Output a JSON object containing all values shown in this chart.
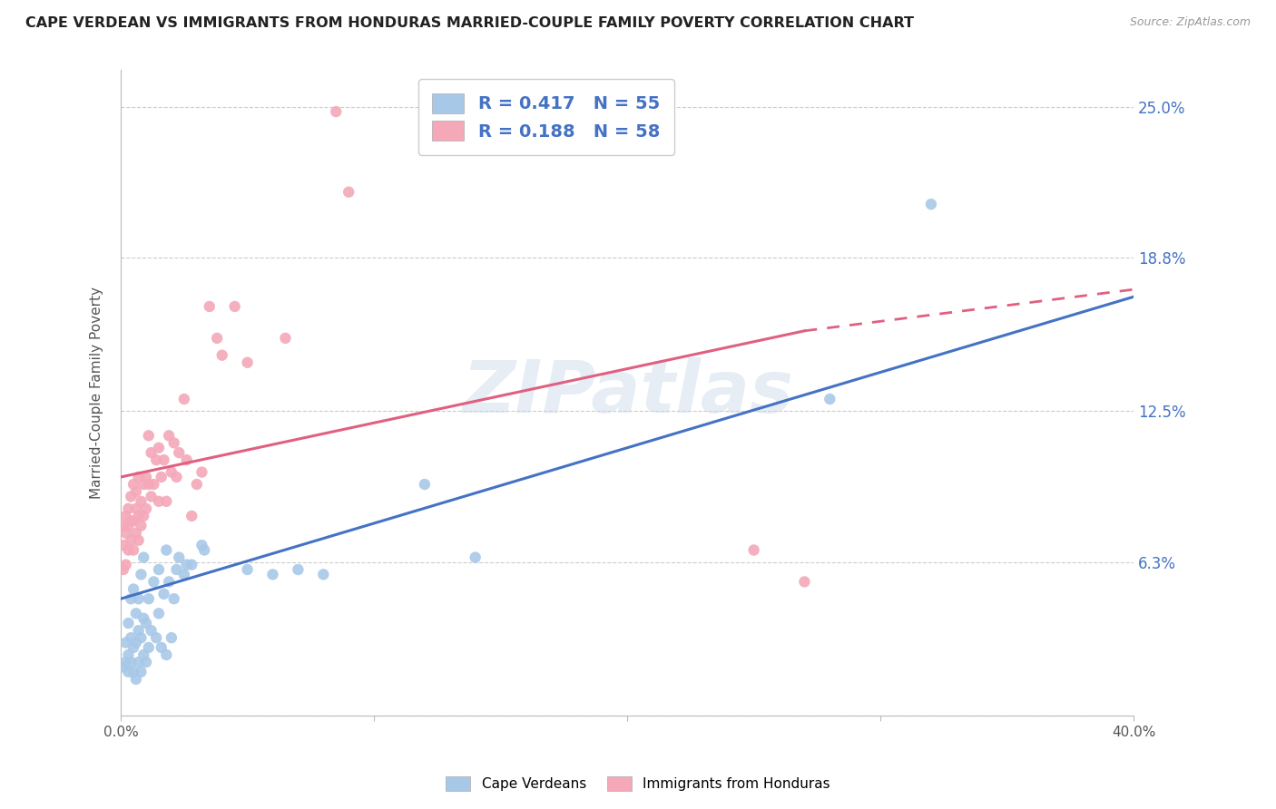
{
  "title": "CAPE VERDEAN VS IMMIGRANTS FROM HONDURAS MARRIED-COUPLE FAMILY POVERTY CORRELATION CHART",
  "source": "Source: ZipAtlas.com",
  "ylabel": "Married-Couple Family Poverty",
  "xlim": [
    0.0,
    0.4
  ],
  "ylim": [
    0.0,
    0.265
  ],
  "yticks": [
    0.0,
    0.063,
    0.125,
    0.188,
    0.25
  ],
  "yticklabels_right": [
    "",
    "6.3%",
    "12.5%",
    "18.8%",
    "25.0%"
  ],
  "blue_R": 0.417,
  "blue_N": 55,
  "pink_R": 0.188,
  "pink_N": 58,
  "watermark": "ZIPatlas",
  "blue_color": "#a8c8e8",
  "pink_color": "#f4a8b8",
  "blue_line_color": "#4472c4",
  "pink_line_color": "#e06080",
  "grid_color": "#cccccc",
  "background_color": "#ffffff",
  "blue_line": [
    [
      0.0,
      0.048
    ],
    [
      0.4,
      0.172
    ]
  ],
  "pink_line_solid": [
    [
      0.0,
      0.098
    ],
    [
      0.27,
      0.158
    ]
  ],
  "pink_line_dashed": [
    [
      0.27,
      0.158
    ],
    [
      0.4,
      0.175
    ]
  ],
  "blue_scatter": [
    [
      0.001,
      0.02
    ],
    [
      0.002,
      0.022
    ],
    [
      0.002,
      0.03
    ],
    [
      0.003,
      0.018
    ],
    [
      0.003,
      0.025
    ],
    [
      0.003,
      0.038
    ],
    [
      0.004,
      0.022
    ],
    [
      0.004,
      0.032
    ],
    [
      0.004,
      0.048
    ],
    [
      0.005,
      0.018
    ],
    [
      0.005,
      0.028
    ],
    [
      0.005,
      0.052
    ],
    [
      0.006,
      0.015
    ],
    [
      0.006,
      0.03
    ],
    [
      0.006,
      0.042
    ],
    [
      0.007,
      0.022
    ],
    [
      0.007,
      0.035
    ],
    [
      0.007,
      0.048
    ],
    [
      0.008,
      0.018
    ],
    [
      0.008,
      0.032
    ],
    [
      0.008,
      0.058
    ],
    [
      0.009,
      0.025
    ],
    [
      0.009,
      0.04
    ],
    [
      0.009,
      0.065
    ],
    [
      0.01,
      0.022
    ],
    [
      0.01,
      0.038
    ],
    [
      0.011,
      0.028
    ],
    [
      0.011,
      0.048
    ],
    [
      0.012,
      0.035
    ],
    [
      0.013,
      0.055
    ],
    [
      0.014,
      0.032
    ],
    [
      0.015,
      0.042
    ],
    [
      0.015,
      0.06
    ],
    [
      0.016,
      0.028
    ],
    [
      0.017,
      0.05
    ],
    [
      0.018,
      0.025
    ],
    [
      0.018,
      0.068
    ],
    [
      0.019,
      0.055
    ],
    [
      0.02,
      0.032
    ],
    [
      0.021,
      0.048
    ],
    [
      0.022,
      0.06
    ],
    [
      0.023,
      0.065
    ],
    [
      0.025,
      0.058
    ],
    [
      0.026,
      0.062
    ],
    [
      0.028,
      0.062
    ],
    [
      0.032,
      0.07
    ],
    [
      0.033,
      0.068
    ],
    [
      0.05,
      0.06
    ],
    [
      0.06,
      0.058
    ],
    [
      0.07,
      0.06
    ],
    [
      0.08,
      0.058
    ],
    [
      0.12,
      0.095
    ],
    [
      0.14,
      0.065
    ],
    [
      0.28,
      0.13
    ],
    [
      0.32,
      0.21
    ]
  ],
  "pink_scatter": [
    [
      0.001,
      0.06
    ],
    [
      0.001,
      0.07
    ],
    [
      0.001,
      0.078
    ],
    [
      0.002,
      0.062
    ],
    [
      0.002,
      0.075
    ],
    [
      0.002,
      0.082
    ],
    [
      0.003,
      0.068
    ],
    [
      0.003,
      0.078
    ],
    [
      0.003,
      0.085
    ],
    [
      0.004,
      0.072
    ],
    [
      0.004,
      0.08
    ],
    [
      0.004,
      0.09
    ],
    [
      0.005,
      0.068
    ],
    [
      0.005,
      0.08
    ],
    [
      0.005,
      0.095
    ],
    [
      0.006,
      0.075
    ],
    [
      0.006,
      0.085
    ],
    [
      0.006,
      0.092
    ],
    [
      0.007,
      0.072
    ],
    [
      0.007,
      0.082
    ],
    [
      0.007,
      0.098
    ],
    [
      0.008,
      0.078
    ],
    [
      0.008,
      0.088
    ],
    [
      0.009,
      0.082
    ],
    [
      0.009,
      0.095
    ],
    [
      0.01,
      0.085
    ],
    [
      0.01,
      0.098
    ],
    [
      0.011,
      0.095
    ],
    [
      0.011,
      0.115
    ],
    [
      0.012,
      0.09
    ],
    [
      0.012,
      0.108
    ],
    [
      0.013,
      0.095
    ],
    [
      0.014,
      0.105
    ],
    [
      0.015,
      0.088
    ],
    [
      0.015,
      0.11
    ],
    [
      0.016,
      0.098
    ],
    [
      0.017,
      0.105
    ],
    [
      0.018,
      0.088
    ],
    [
      0.019,
      0.115
    ],
    [
      0.02,
      0.1
    ],
    [
      0.021,
      0.112
    ],
    [
      0.022,
      0.098
    ],
    [
      0.023,
      0.108
    ],
    [
      0.025,
      0.13
    ],
    [
      0.026,
      0.105
    ],
    [
      0.028,
      0.082
    ],
    [
      0.03,
      0.095
    ],
    [
      0.032,
      0.1
    ],
    [
      0.035,
      0.168
    ],
    [
      0.038,
      0.155
    ],
    [
      0.04,
      0.148
    ],
    [
      0.045,
      0.168
    ],
    [
      0.05,
      0.145
    ],
    [
      0.065,
      0.155
    ],
    [
      0.085,
      0.248
    ],
    [
      0.09,
      0.215
    ],
    [
      0.25,
      0.068
    ],
    [
      0.27,
      0.055
    ]
  ]
}
